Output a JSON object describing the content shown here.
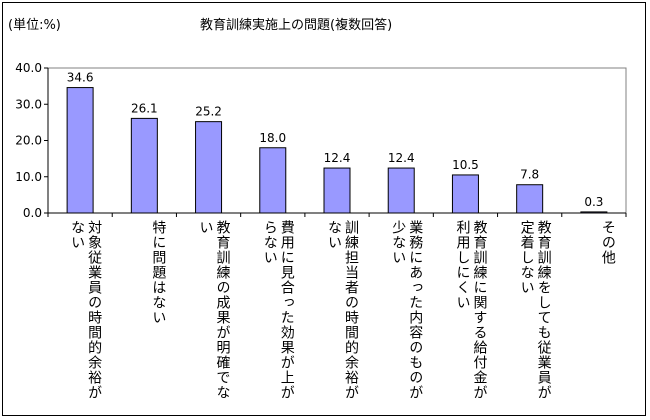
{
  "chart_data": {
    "type": "bar",
    "title": "教育訓練実施上の問題(複数回答)",
    "unit_label": "(単位:%)",
    "xlabel": "",
    "ylabel": "",
    "ylim": [
      0,
      40
    ],
    "yticks": [
      "0.0",
      "10.0",
      "20.0",
      "30.0",
      "40.0"
    ],
    "grid": false,
    "legend": "none",
    "bar_color": "#9999ff",
    "categories": [
      "対象従業員の時間的余裕がない",
      "特に問題はない",
      "教育訓練の成果が明確でない",
      "費用に見合った効果が上がらない",
      "訓練担当者の時間的余裕がない",
      "業務にあった内容のものが少ない",
      "教育訓練に関する給付金が利用しにくい",
      "教育訓練をしても従業員が定着しない",
      "その他"
    ],
    "values": [
      34.6,
      26.1,
      25.2,
      18.0,
      12.4,
      12.4,
      10.5,
      7.8,
      0.3
    ],
    "value_labels": [
      "34.6",
      "26.1",
      "25.2",
      "18.0",
      "12.4",
      "12.4",
      "10.5",
      "7.8",
      "0.3"
    ]
  }
}
